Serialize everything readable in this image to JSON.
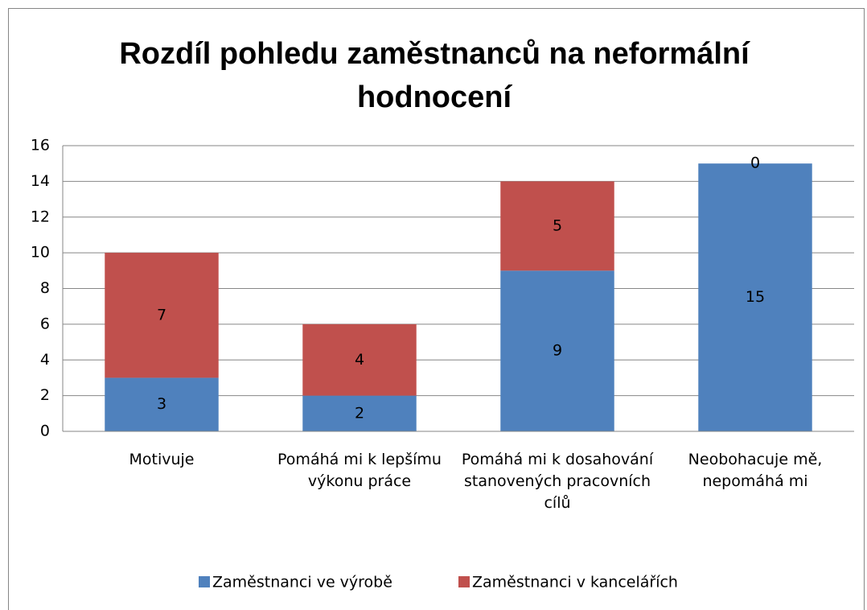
{
  "chart_data": {
    "type": "stacked_bar",
    "title": "Rozdíl pohledu zaměstnanců na neformální hodnocení",
    "categories": [
      "Motivuje",
      "Pomáhá mi k lepšímu výkonu práce",
      "Pomáhá mi k dosahování stanovených pracovních cílů",
      "Neobohacuje mě, nepomáhá mi"
    ],
    "series": [
      {
        "name": "Zaměstnanci ve výrobě",
        "color": "#4f81bd",
        "values": [
          3,
          2,
          9,
          15
        ]
      },
      {
        "name": "Zaměstnanci v kancelářích",
        "color": "#c0504d",
        "values": [
          7,
          4,
          5,
          0
        ]
      }
    ],
    "ylim": [
      0,
      16
    ],
    "yticks": [
      0,
      2,
      4,
      6,
      8,
      10,
      12,
      14,
      16
    ],
    "grid": true,
    "legend": "bottom"
  }
}
